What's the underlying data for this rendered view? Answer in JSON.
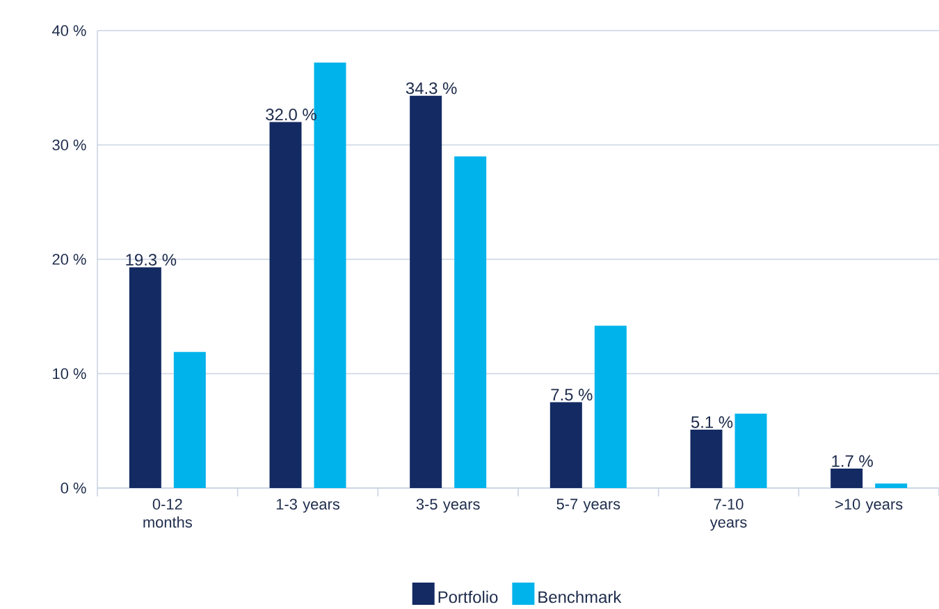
{
  "chart_data": {
    "type": "bar",
    "categories": [
      "0-12 months",
      "1-3 years",
      "3-5 years",
      "5-7 years",
      "7-10 years",
      ">10 years"
    ],
    "series": [
      {
        "name": "Portfolio",
        "color": "#132a63",
        "values": [
          19.3,
          32.0,
          34.3,
          7.5,
          5.1,
          1.7
        ],
        "value_labels": [
          "19.3 %",
          "32.0 %",
          "34.3 %",
          "7.5 %",
          "5.1 %",
          "1.7 %"
        ]
      },
      {
        "name": "Benchmark",
        "color": "#00b3ea",
        "values": [
          11.9,
          37.2,
          29.0,
          14.2,
          6.5,
          0.4
        ]
      }
    ],
    "ylim": [
      0,
      40
    ],
    "yticks": [
      {
        "value": 0,
        "label": "0 %"
      },
      {
        "value": 10,
        "label": "10 %"
      },
      {
        "value": 20,
        "label": "20 %"
      },
      {
        "value": 30,
        "label": "30 %"
      },
      {
        "value": 40,
        "label": "40 %"
      }
    ],
    "grid": "y",
    "legend": "bottom"
  }
}
